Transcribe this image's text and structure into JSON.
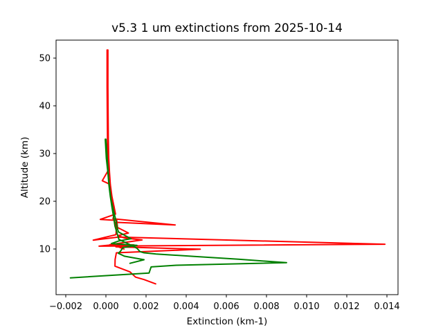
{
  "figure": {
    "title": "v5.3 1 um extinctions from 2025-10-14"
  },
  "chart_data": {
    "type": "line",
    "title": "v5.3 1 um extinctions from 2025-10-14",
    "xlabel": "Extinction (km-1)",
    "ylabel": "Altitude (km)",
    "xlim": [
      -0.0025,
      0.0146
    ],
    "ylim": [
      0.4,
      53.8
    ],
    "grid": false,
    "legend": null,
    "background": "#ffffff",
    "axis_color": "#000000",
    "xticks": {
      "values": [
        -0.002,
        0.0,
        0.002,
        0.004,
        0.006,
        0.008,
        0.01,
        0.012,
        0.014
      ],
      "labels": [
        "−0.002",
        "0.000",
        "0.002",
        "0.004",
        "0.006",
        "0.008",
        "0.010",
        "0.012",
        "0.014"
      ]
    },
    "yticks": {
      "values": [
        10,
        20,
        30,
        40,
        50
      ],
      "labels": [
        "10",
        "20",
        "30",
        "40",
        "50"
      ]
    },
    "series": [
      {
        "name": "red-profile-1",
        "color": "#ff0000",
        "linewidth": 2,
        "points": [
          [
            6e-05,
            51.7
          ],
          [
            6e-05,
            44.0
          ],
          [
            7e-05,
            38.0
          ],
          [
            8e-05,
            33.0
          ],
          [
            0.0001,
            29.0
          ],
          [
            0.00012,
            26.5
          ],
          [
            -0.00018,
            24.3
          ],
          [
            0.00018,
            23.6
          ],
          [
            0.00022,
            22.0
          ],
          [
            0.00028,
            20.3
          ],
          [
            0.00036,
            18.5
          ],
          [
            0.00042,
            17.3
          ],
          [
            0.00035,
            16.35
          ],
          [
            0.00345,
            15.05
          ],
          [
            0.00046,
            15.6
          ],
          [
            0.00052,
            14.3
          ],
          [
            0.0005,
            13.0
          ],
          [
            -0.00063,
            11.85
          ],
          [
            0.00062,
            12.5
          ],
          [
            0.0139,
            11.0
          ],
          [
            -0.00034,
            10.6
          ],
          [
            0.00075,
            11.05
          ],
          [
            0.0005,
            10.45
          ],
          [
            0.0047,
            9.95
          ],
          [
            0.00052,
            9.2
          ],
          [
            0.00046,
            7.8
          ],
          [
            0.00045,
            6.4
          ],
          [
            0.0012,
            5.2
          ],
          [
            0.00148,
            4.1
          ],
          [
            0.0019,
            3.6
          ],
          [
            0.00248,
            2.7
          ]
        ]
      },
      {
        "name": "red-profile-2",
        "color": "#ff0000",
        "linewidth": 2,
        "points": [
          [
            0.0001,
            51.7
          ],
          [
            0.0001,
            44.0
          ],
          [
            0.00011,
            38.0
          ],
          [
            0.00012,
            33.0
          ],
          [
            0.00014,
            29.0
          ],
          [
            0.00018,
            26.0
          ],
          [
            0.00022,
            23.5
          ],
          [
            0.0003,
            21.0
          ],
          [
            0.0004,
            19.0
          ],
          [
            0.00048,
            17.3
          ],
          [
            -0.00028,
            16.2
          ],
          [
            0.00054,
            16.0
          ],
          [
            0.00058,
            14.5
          ],
          [
            0.00112,
            13.35
          ],
          [
            0.0006,
            12.8
          ],
          [
            0.00092,
            12.3
          ],
          [
            0.0018,
            11.9
          ],
          [
            0.00088,
            11.35
          ],
          [
            0.0002,
            10.9
          ],
          [
            0.0014,
            10.85
          ],
          [
            0.00065,
            10.4
          ],
          [
            0.0009,
            10.0
          ]
        ]
      },
      {
        "name": "green-profile-1",
        "color": "#008000",
        "linewidth": 2,
        "points": [
          [
            -3e-05,
            33.0
          ],
          [
            2e-05,
            29.0
          ],
          [
            0.0001,
            26.0
          ],
          [
            0.00015,
            23.5
          ],
          [
            0.00022,
            21.0
          ],
          [
            0.0003,
            18.8
          ],
          [
            0.00038,
            16.8
          ],
          [
            0.00045,
            14.8
          ],
          [
            0.00065,
            12.0
          ],
          [
            0.00116,
            11.0
          ],
          [
            0.00155,
            10.15
          ],
          [
            0.0017,
            9.45
          ],
          [
            0.0019,
            9.2
          ],
          [
            0.0025,
            8.95
          ],
          [
            0.0044,
            8.45
          ],
          [
            0.0066,
            7.85
          ],
          [
            0.009,
            7.15
          ],
          [
            0.0035,
            6.6
          ],
          [
            0.00225,
            6.25
          ],
          [
            0.00215,
            4.95
          ],
          [
            -0.00177,
            3.95
          ]
        ]
      },
      {
        "name": "green-profile-2",
        "color": "#008000",
        "linewidth": 2,
        "points": [
          [
            0.0,
            33.0
          ],
          [
            8e-05,
            28.0
          ],
          [
            0.00015,
            24.0
          ],
          [
            0.00025,
            20.5
          ],
          [
            0.00038,
            18.0
          ],
          [
            0.0005,
            16.0
          ],
          [
            0.00058,
            14.2
          ],
          [
            0.00062,
            13.6
          ],
          [
            0.00125,
            12.15
          ],
          [
            0.00065,
            11.7
          ],
          [
            0.00028,
            11.15
          ],
          [
            0.00155,
            10.75
          ],
          [
            0.00085,
            10.3
          ],
          [
            0.00072,
            9.5
          ],
          [
            0.00062,
            9.1
          ],
          [
            0.00092,
            8.5
          ],
          [
            0.0019,
            7.75
          ],
          [
            0.0012,
            7.0
          ]
        ]
      }
    ]
  }
}
